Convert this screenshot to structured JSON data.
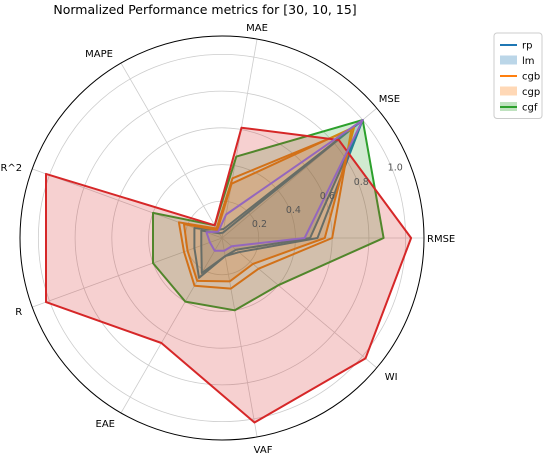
{
  "chart_data": {
    "type": "radar",
    "title": "Normalized Performance metrics for [30, 10, 15]",
    "axes": [
      "RMSE",
      "MSE",
      "MAE",
      "MAPE",
      "R^2",
      "R",
      "EAE",
      "VAF",
      "WI"
    ],
    "rticks": [
      "0.2",
      "0.4",
      "0.6",
      "0.8",
      "1.0"
    ],
    "rlim": [
      0,
      1.1
    ],
    "grid": true,
    "legend_position": "top-right",
    "series": [
      {
        "name": "rp",
        "color": "#1f77b4",
        "fill": false,
        "values": [
          0.52,
          1.0,
          0.05,
          0.05,
          0.16,
          0.16,
          0.25,
          0.1,
          0.12
        ]
      },
      {
        "name": "lm",
        "color": "#1f77b4",
        "fill": true,
        "values": [
          0.48,
          1.0,
          0.03,
          0.03,
          0.12,
          0.12,
          0.22,
          0.1,
          0.1
        ]
      },
      {
        "name": "cgb",
        "color": "#ff7f0e",
        "fill": false,
        "values": [
          0.6,
          0.92,
          0.33,
          0.06,
          0.25,
          0.22,
          0.3,
          0.28,
          0.26
        ]
      },
      {
        "name": "cgp",
        "color": "#ff7f0e",
        "fill": true,
        "values": [
          0.56,
          0.94,
          0.3,
          0.05,
          0.22,
          0.2,
          0.27,
          0.24,
          0.22
        ]
      },
      {
        "name": "cgf",
        "color": "#2ca02c",
        "fill": true,
        "values": [
          0.88,
          1.0,
          0.45,
          0.08,
          0.4,
          0.4,
          0.4,
          0.4,
          0.4
        ]
      },
      {
        "name": "",
        "color": "#d62728",
        "fill": true,
        "values": [
          1.03,
          0.83,
          0.61,
          0.08,
          1.02,
          1.02,
          0.66,
          1.02,
          1.02
        ]
      },
      {
        "name": "",
        "color": "#9467bd",
        "fill": false,
        "values": [
          0.45,
          1.0,
          0.13,
          0.04,
          0.09,
          0.07,
          0.08,
          0.07,
          0.07
        ]
      }
    ]
  }
}
